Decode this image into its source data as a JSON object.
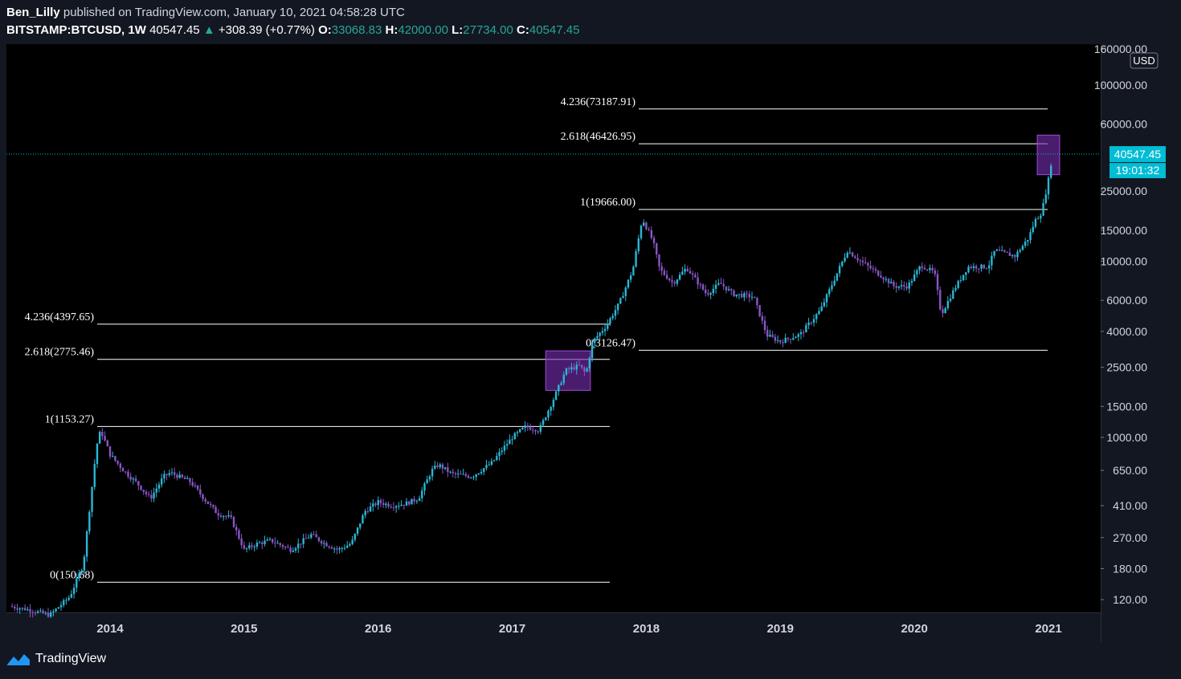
{
  "header": {
    "author": "Ben_Lilly",
    "published_text": "published on TradingView.com, January 10, 2021 04:58:28 UTC",
    "symbol": "BITSTAMP:BTCUSD, 1W",
    "price": "40547.45",
    "change_arrow": "▲",
    "change": "+308.39 (+0.77%)",
    "o_label": "O:",
    "o_value": "33068.83",
    "h_label": "H:",
    "h_value": "42000.00",
    "l_label": "L:",
    "l_value": "27734.00",
    "c_label": "C:",
    "c_value": "40547.45"
  },
  "footer": {
    "brand": "TradingView"
  },
  "colors": {
    "background": "#000000",
    "page": "#131722",
    "candle_up": "#2ab7d6",
    "candle_down": "#8a56c8",
    "level_line": "#ffffff",
    "box_fill": "#7b2fb5",
    "price_tag": "#00bcd4",
    "axis_text": "#d1d4dc"
  },
  "chart_data": {
    "type": "candlestick",
    "scale": "log",
    "currency_label": "USD",
    "x_ticks": [
      "2014",
      "2015",
      "2016",
      "2017",
      "2018",
      "2019",
      "2020",
      "2021"
    ],
    "y_ticks": [
      "160000.00",
      "100000.00",
      "60000.00",
      "25000.00",
      "15000.00",
      "10000.00",
      "6000.00",
      "4000.00",
      "2500.00",
      "1500.00",
      "1000.00",
      "650.00",
      "410.00",
      "270.00",
      "180.00",
      "120.00"
    ],
    "ylim": [
      95,
      170000
    ],
    "last_price_label": "40547.45",
    "countdown_label": "19:01:32",
    "fib_levels": [
      {
        "label": "4.236(73187.91)",
        "value": 73187.91,
        "cycle": 2
      },
      {
        "label": "2.618(46426.95)",
        "value": 46426.95,
        "cycle": 2
      },
      {
        "label": "1(19666.00)",
        "value": 19666.0,
        "cycle": 2
      },
      {
        "label": "0(3126.47)",
        "value": 3126.47,
        "cycle": 2
      },
      {
        "label": "4.236(4397.65)",
        "value": 4397.65,
        "cycle": 1
      },
      {
        "label": "2.618(2775.46)",
        "value": 2775.46,
        "cycle": 1
      },
      {
        "label": "1(1153.27)",
        "value": 1153.27,
        "cycle": 1
      },
      {
        "label": "0(150.68)",
        "value": 150.68,
        "cycle": 1
      }
    ],
    "highlight_boxes": [
      {
        "from": "2017-04",
        "to": "2017-08",
        "low": 1850,
        "high": 3100
      },
      {
        "from": "2020-12",
        "to": "2021-02",
        "low": 31000,
        "high": 52000
      }
    ],
    "price_path": [
      [
        "2013.25",
        110
      ],
      [
        "2013.40",
        105
      ],
      [
        "2013.55",
        98
      ],
      [
        "2013.70",
        125
      ],
      [
        "2013.80",
        190
      ],
      [
        "2013.90",
        900
      ],
      [
        "2013.93",
        1100
      ],
      [
        "2014.00",
        800
      ],
      [
        "2014.10",
        650
      ],
      [
        "2014.20",
        550
      ],
      [
        "2014.30",
        450
      ],
      [
        "2014.40",
        600
      ],
      [
        "2014.45",
        630
      ],
      [
        "2014.60",
        560
      ],
      [
        "2014.70",
        450
      ],
      [
        "2014.80",
        370
      ],
      [
        "2014.90",
        350
      ],
      [
        "2015.00",
        230
      ],
      [
        "2015.10",
        250
      ],
      [
        "2015.20",
        260
      ],
      [
        "2015.35",
        230
      ],
      [
        "2015.50",
        280
      ],
      [
        "2015.60",
        250
      ],
      [
        "2015.70",
        230
      ],
      [
        "2015.80",
        250
      ],
      [
        "2015.90",
        380
      ],
      [
        "2016.00",
        430
      ],
      [
        "2016.10",
        410
      ],
      [
        "2016.20",
        420
      ],
      [
        "2016.30",
        450
      ],
      [
        "2016.40",
        650
      ],
      [
        "2016.45",
        700
      ],
      [
        "2016.55",
        620
      ],
      [
        "2016.70",
        600
      ],
      [
        "2016.85",
        720
      ],
      [
        "2016.95",
        900
      ],
      [
        "2017.00",
        1000
      ],
      [
        "2017.10",
        1150
      ],
      [
        "2017.20",
        1100
      ],
      [
        "2017.30",
        1600
      ],
      [
        "2017.40",
        2400
      ],
      [
        "2017.50",
        2550
      ],
      [
        "2017.55",
        2300
      ],
      [
        "2017.60",
        3500
      ],
      [
        "2017.70",
        4300
      ],
      [
        "2017.80",
        5800
      ],
      [
        "2017.90",
        9000
      ],
      [
        "2017.97",
        17500
      ],
      [
        "2018.05",
        13000
      ],
      [
        "2018.10",
        9000
      ],
      [
        "2018.20",
        7500
      ],
      [
        "2018.30",
        9200
      ],
      [
        "2018.45",
        6500
      ],
      [
        "2018.55",
        7500
      ],
      [
        "2018.65",
        6500
      ],
      [
        "2018.80",
        6300
      ],
      [
        "2018.90",
        3800
      ],
      [
        "2019.00",
        3500
      ],
      [
        "2019.15",
        3850
      ],
      [
        "2019.30",
        5300
      ],
      [
        "2019.45",
        9500
      ],
      [
        "2019.50",
        11500
      ],
      [
        "2019.60",
        10000
      ],
      [
        "2019.75",
        8300
      ],
      [
        "2019.85",
        7200
      ],
      [
        "2019.95",
        7200
      ],
      [
        "2020.05",
        9500
      ],
      [
        "2020.15",
        8600
      ],
      [
        "2020.20",
        5000
      ],
      [
        "2020.30",
        7000
      ],
      [
        "2020.40",
        9300
      ],
      [
        "2020.55",
        9300
      ],
      [
        "2020.60",
        11500
      ],
      [
        "2020.75",
        10700
      ],
      [
        "2020.85",
        13500
      ],
      [
        "2020.90",
        17000
      ],
      [
        "2020.95",
        19000
      ],
      [
        "2021.00",
        29000
      ],
      [
        "2021.03",
        40547
      ]
    ]
  }
}
